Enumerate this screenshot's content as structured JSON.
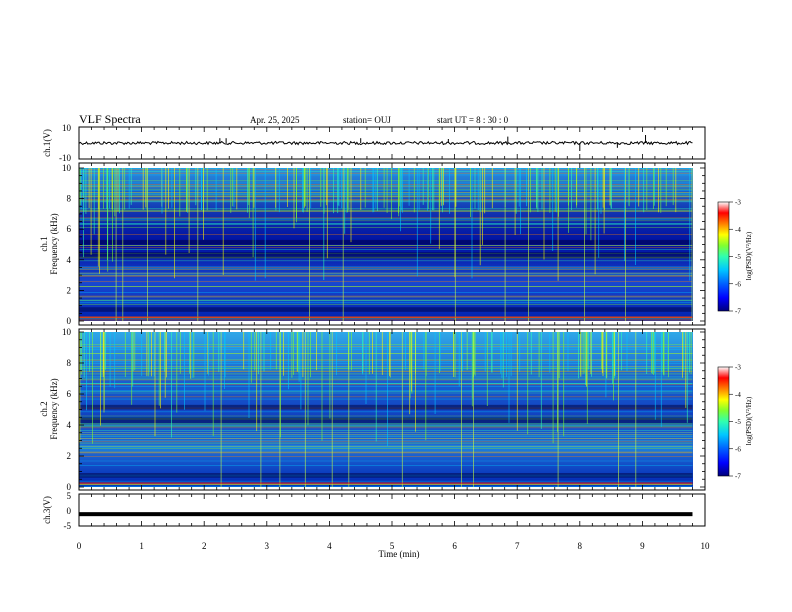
{
  "header": {
    "title": "VLF Spectra",
    "date": "Apr. 25, 2025",
    "station": "station= OUJ",
    "start": "start  UT =   8  : 30 : 0"
  },
  "colorbar": {
    "label": "log(PSD)(V²/Hz)",
    "ticks": [
      "-3",
      "-4",
      "-5",
      "-6",
      "-7"
    ],
    "colors": [
      "#00007a",
      "#0000ff",
      "#0060ff",
      "#00c8ff",
      "#30ffb0",
      "#80ff30",
      "#ffff00",
      "#ff8000",
      "#ff0000",
      "#ffffff"
    ]
  },
  "chart_data": [
    {
      "type": "line",
      "panel": "ch1-waveform",
      "ylabel": "ch.1(V)",
      "ylim": [
        -10,
        10
      ],
      "ytick_labels": [
        "10",
        "-10"
      ],
      "baseline": 0,
      "x_range": [
        0,
        9.8
      ],
      "spikes": [
        {
          "x": 2.25,
          "y": 3
        },
        {
          "x": 2.35,
          "y": 3
        },
        {
          "x": 4.5,
          "y": 3
        },
        {
          "x": 5.9,
          "y": 2.5
        },
        {
          "x": 6.85,
          "y": 4
        },
        {
          "x": 8.0,
          "y": -5
        },
        {
          "x": 8.6,
          "y": -3
        },
        {
          "x": 9.05,
          "y": 5
        }
      ]
    },
    {
      "type": "heatmap",
      "panel": "ch1-spectrogram",
      "ylabel": "ch.1\nFrequency (kHz)",
      "ylim": [
        0,
        10
      ],
      "ytick_labels": [
        "0",
        "2",
        "4",
        "6",
        "8",
        "10"
      ],
      "x_range": [
        0,
        9.8
      ]
    },
    {
      "type": "heatmap",
      "panel": "ch2-spectrogram",
      "ylabel": "ch.2\nFrequency (kHz)",
      "ylim": [
        0,
        10
      ],
      "ytick_labels": [
        "0",
        "2",
        "4",
        "6",
        "8",
        "10"
      ],
      "x_range": [
        0,
        9.8
      ]
    },
    {
      "type": "line",
      "panel": "ch3-waveform",
      "ylabel": "ch.3(V)",
      "ylim": [
        -5,
        5
      ],
      "ytick_labels": [
        "5",
        "0",
        "-5"
      ],
      "baseline": -1.3,
      "x_range": [
        0,
        9.8
      ]
    }
  ],
  "xaxis": {
    "label": "Time (min)",
    "xlim": [
      0,
      10
    ],
    "ticks": [
      "0",
      "1",
      "2",
      "3",
      "4",
      "5",
      "6",
      "7",
      "8",
      "9",
      "10"
    ]
  }
}
